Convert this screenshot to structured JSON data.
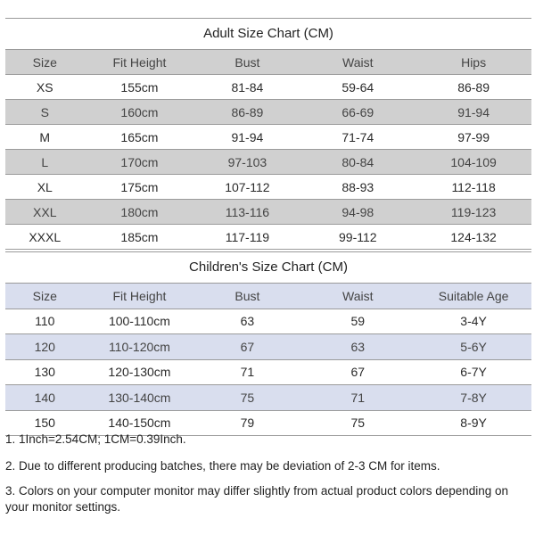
{
  "adult_chart": {
    "title": "Adult Size Chart (CM)",
    "headers": [
      "Size",
      "Fit Height",
      "Bust",
      "Waist",
      "Hips"
    ],
    "rows": [
      [
        "XS",
        "155cm",
        "81-84",
        "59-64",
        "86-89"
      ],
      [
        "S",
        "160cm",
        "86-89",
        "66-69",
        "91-94"
      ],
      [
        "M",
        "165cm",
        "91-94",
        "71-74",
        "97-99"
      ],
      [
        "L",
        "170cm",
        "97-103",
        "80-84",
        "104-109"
      ],
      [
        "XL",
        "175cm",
        "107-112",
        "88-93",
        "112-118"
      ],
      [
        "XXL",
        "180cm",
        "113-116",
        "94-98",
        "119-123"
      ],
      [
        "XXXL",
        "185cm",
        "117-119",
        "99-112",
        "124-132"
      ]
    ]
  },
  "children_chart": {
    "title": "Children's Size Chart (CM)",
    "headers": [
      "Size",
      "Fit Height",
      "Bust",
      "Waist",
      "Suitable Age"
    ],
    "rows": [
      [
        "110",
        "100-110cm",
        "63",
        "59",
        "3-4Y"
      ],
      [
        "120",
        "110-120cm",
        "67",
        "63",
        "5-6Y"
      ],
      [
        "130",
        "120-130cm",
        "71",
        "67",
        "6-7Y"
      ],
      [
        "140",
        "130-140cm",
        "75",
        "71",
        "7-8Y"
      ],
      [
        "150",
        "140-150cm",
        "79",
        "75",
        "8-9Y"
      ]
    ]
  },
  "notes": [
    "1. 1Inch=2.54CM; 1CM=0.39Inch.",
    "2. Due to different producing batches, there may be deviation of 2-3 CM for items.",
    "3. Colors on your computer monitor may differ slightly from actual product colors depending on your monitor settings."
  ],
  "colors": {
    "adult_stripe": "#d0d0d0",
    "children_stripe": "#d9deee",
    "rule_line": "#9a9a9a",
    "text": "#222222"
  }
}
